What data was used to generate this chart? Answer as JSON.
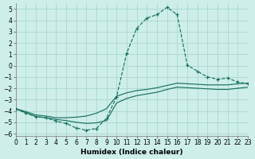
{
  "background_color": "#cdeee9",
  "grid_color": "#aad8d0",
  "line_color": "#1a7060",
  "xlabel": "Humidex (Indice chaleur)",
  "xlim": [
    0,
    23
  ],
  "ylim": [
    -6.2,
    5.5
  ],
  "yticks": [
    -6,
    -5,
    -4,
    -3,
    -2,
    -1,
    0,
    1,
    2,
    3,
    4,
    5
  ],
  "xticks": [
    0,
    1,
    2,
    3,
    4,
    5,
    6,
    7,
    8,
    9,
    10,
    11,
    12,
    13,
    14,
    15,
    16,
    17,
    18,
    19,
    20,
    21,
    22,
    23
  ],
  "c1_x": [
    0,
    1,
    2,
    3,
    4,
    5,
    6,
    7,
    8,
    9,
    10,
    11,
    12,
    13,
    14,
    15,
    16,
    17,
    18,
    19,
    20,
    21,
    22,
    23
  ],
  "c1_y": [
    -3.8,
    -4.2,
    -4.5,
    -4.6,
    -4.9,
    -5.1,
    -5.5,
    -5.7,
    -5.55,
    -4.65,
    -2.75,
    1.1,
    3.3,
    4.2,
    4.5,
    5.15,
    4.5,
    0.05,
    -0.5,
    -1.0,
    -1.2,
    -1.1,
    -1.45,
    -1.6
  ],
  "c2_x": [
    0,
    1,
    2,
    3,
    4,
    5,
    6,
    7,
    8,
    9,
    10,
    11,
    12,
    13,
    14,
    15,
    16,
    17,
    18,
    19,
    20,
    21,
    22,
    23
  ],
  "c2_y": [
    -3.8,
    -4.05,
    -4.35,
    -4.45,
    -4.6,
    -4.6,
    -4.55,
    -4.45,
    -4.2,
    -3.8,
    -2.7,
    -2.4,
    -2.2,
    -2.1,
    -1.95,
    -1.75,
    -1.55,
    -1.6,
    -1.65,
    -1.7,
    -1.7,
    -1.7,
    -1.6,
    -1.55
  ],
  "c3_x": [
    0,
    1,
    2,
    3,
    4,
    5,
    6,
    7,
    8,
    9,
    10,
    11,
    12,
    13,
    14,
    15,
    16,
    17,
    18,
    19,
    20,
    21,
    22,
    23
  ],
  "c3_y": [
    -3.8,
    -4.15,
    -4.5,
    -4.6,
    -4.75,
    -4.85,
    -5.0,
    -5.1,
    -5.05,
    -4.85,
    -3.3,
    -2.9,
    -2.65,
    -2.5,
    -2.35,
    -2.1,
    -1.9,
    -1.95,
    -2.0,
    -2.05,
    -2.1,
    -2.1,
    -2.0,
    -1.9
  ]
}
